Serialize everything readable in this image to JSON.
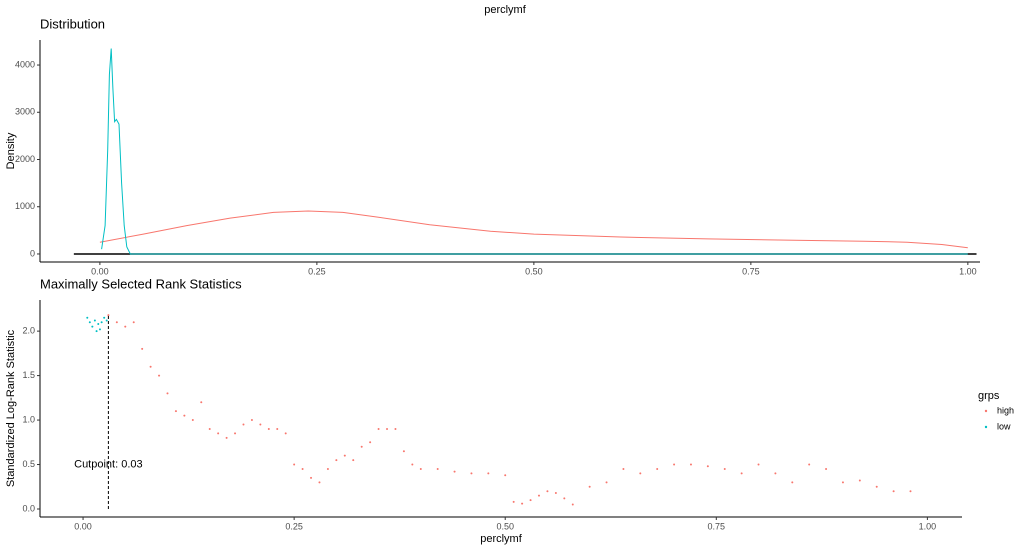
{
  "title": "perclymf",
  "chart_data": [
    {
      "type": "line",
      "title": "Distribution",
      "ylabel": "Density",
      "xlim": [
        -0.069,
        1.014
      ],
      "ylim": [
        -170,
        4530
      ],
      "xticks": [
        {
          "value": 0,
          "label": "0.00"
        },
        {
          "value": 0.25,
          "label": "0.25"
        },
        {
          "value": 0.5,
          "label": "0.50"
        },
        {
          "value": 0.75,
          "label": "0.75"
        },
        {
          "value": 1,
          "label": "1.00"
        }
      ],
      "yticks": [
        0,
        1000,
        2000,
        3000,
        4000
      ],
      "series": [
        {
          "color": "#F8766D",
          "x": [
            0.0,
            0.05,
            0.1,
            0.15,
            0.2,
            0.24,
            0.28,
            0.32,
            0.38,
            0.45,
            0.5,
            0.6,
            0.7,
            0.8,
            0.88,
            0.93,
            0.97,
            1.0
          ],
          "values": [
            250,
            420,
            600,
            760,
            880,
            910,
            880,
            780,
            620,
            480,
            420,
            360,
            320,
            290,
            270,
            250,
            200,
            130
          ]
        },
        {
          "color": "#00BFC4",
          "x": [
            0.002,
            0.006,
            0.009,
            0.011,
            0.013,
            0.015,
            0.017,
            0.019,
            0.022,
            0.025,
            0.028,
            0.031,
            0.035,
            0.1,
            0.5,
            1.0
          ],
          "values": [
            100,
            600,
            2200,
            3800,
            4350,
            3500,
            2800,
            2850,
            2750,
            1500,
            600,
            150,
            0,
            0,
            0,
            0
          ]
        }
      ]
    },
    {
      "type": "scatter",
      "title": "Maximally Selected Rank Statistics",
      "xlabel": "perclymf",
      "ylabel": "Standardized Log-Rank Statistic",
      "xlim": [
        -0.051,
        1.041
      ],
      "ylim": [
        -0.09,
        2.35
      ],
      "xticks": [
        {
          "value": 0,
          "label": "0.00"
        },
        {
          "value": 0.25,
          "label": "0.25"
        },
        {
          "value": 0.5,
          "label": "0.50"
        },
        {
          "value": 0.75,
          "label": "0.75"
        },
        {
          "value": 1,
          "label": "1.00"
        }
      ],
      "yticks": [
        {
          "value": 0,
          "label": "0.0"
        },
        {
          "value": 0.5,
          "label": "0.5"
        },
        {
          "value": 1,
          "label": "1.0"
        },
        {
          "value": 1.5,
          "label": "1.5"
        },
        {
          "value": 2,
          "label": "2.0"
        }
      ],
      "legend_title": "grps",
      "legend": "right",
      "cutpoint": {
        "x": 0.03,
        "y": 2.18,
        "label": "Cutpoint: 0.03"
      },
      "series": [
        {
          "name": "high",
          "color": "#F8766D",
          "x": [
            0.03,
            0.04,
            0.05,
            0.06,
            0.07,
            0.08,
            0.09,
            0.1,
            0.11,
            0.12,
            0.13,
            0.14,
            0.15,
            0.16,
            0.17,
            0.18,
            0.19,
            0.2,
            0.21,
            0.22,
            0.23,
            0.24,
            0.25,
            0.26,
            0.27,
            0.28,
            0.29,
            0.3,
            0.31,
            0.32,
            0.33,
            0.34,
            0.35,
            0.36,
            0.37,
            0.38,
            0.39,
            0.4,
            0.42,
            0.44,
            0.46,
            0.48,
            0.5,
            0.51,
            0.52,
            0.53,
            0.54,
            0.55,
            0.56,
            0.57,
            0.58,
            0.6,
            0.62,
            0.64,
            0.66,
            0.68,
            0.7,
            0.72,
            0.74,
            0.76,
            0.78,
            0.8,
            0.82,
            0.84,
            0.86,
            0.88,
            0.9,
            0.92,
            0.94,
            0.96,
            0.98
          ],
          "values": [
            2.18,
            2.1,
            2.05,
            2.1,
            1.8,
            1.6,
            1.5,
            1.3,
            1.1,
            1.05,
            1.0,
            1.2,
            0.9,
            0.85,
            0.8,
            0.85,
            0.95,
            1.0,
            0.95,
            0.9,
            0.9,
            0.85,
            0.5,
            0.45,
            0.35,
            0.3,
            0.45,
            0.55,
            0.6,
            0.55,
            0.7,
            0.75,
            0.9,
            0.9,
            0.9,
            0.65,
            0.5,
            0.45,
            0.45,
            0.42,
            0.4,
            0.4,
            0.38,
            0.08,
            0.06,
            0.1,
            0.15,
            0.2,
            0.18,
            0.12,
            0.05,
            0.25,
            0.3,
            0.45,
            0.4,
            0.45,
            0.5,
            0.5,
            0.48,
            0.45,
            0.4,
            0.5,
            0.4,
            0.3,
            0.5,
            0.45,
            0.3,
            0.32,
            0.25,
            0.2,
            0.2
          ]
        },
        {
          "name": "low",
          "color": "#00BFC4",
          "x": [
            0.005,
            0.008,
            0.011,
            0.014,
            0.016,
            0.018,
            0.02,
            0.022,
            0.025,
            0.028
          ],
          "values": [
            2.15,
            2.1,
            2.05,
            2.12,
            2.0,
            2.08,
            2.02,
            2.1,
            2.15,
            2.12
          ]
        }
      ]
    }
  ]
}
